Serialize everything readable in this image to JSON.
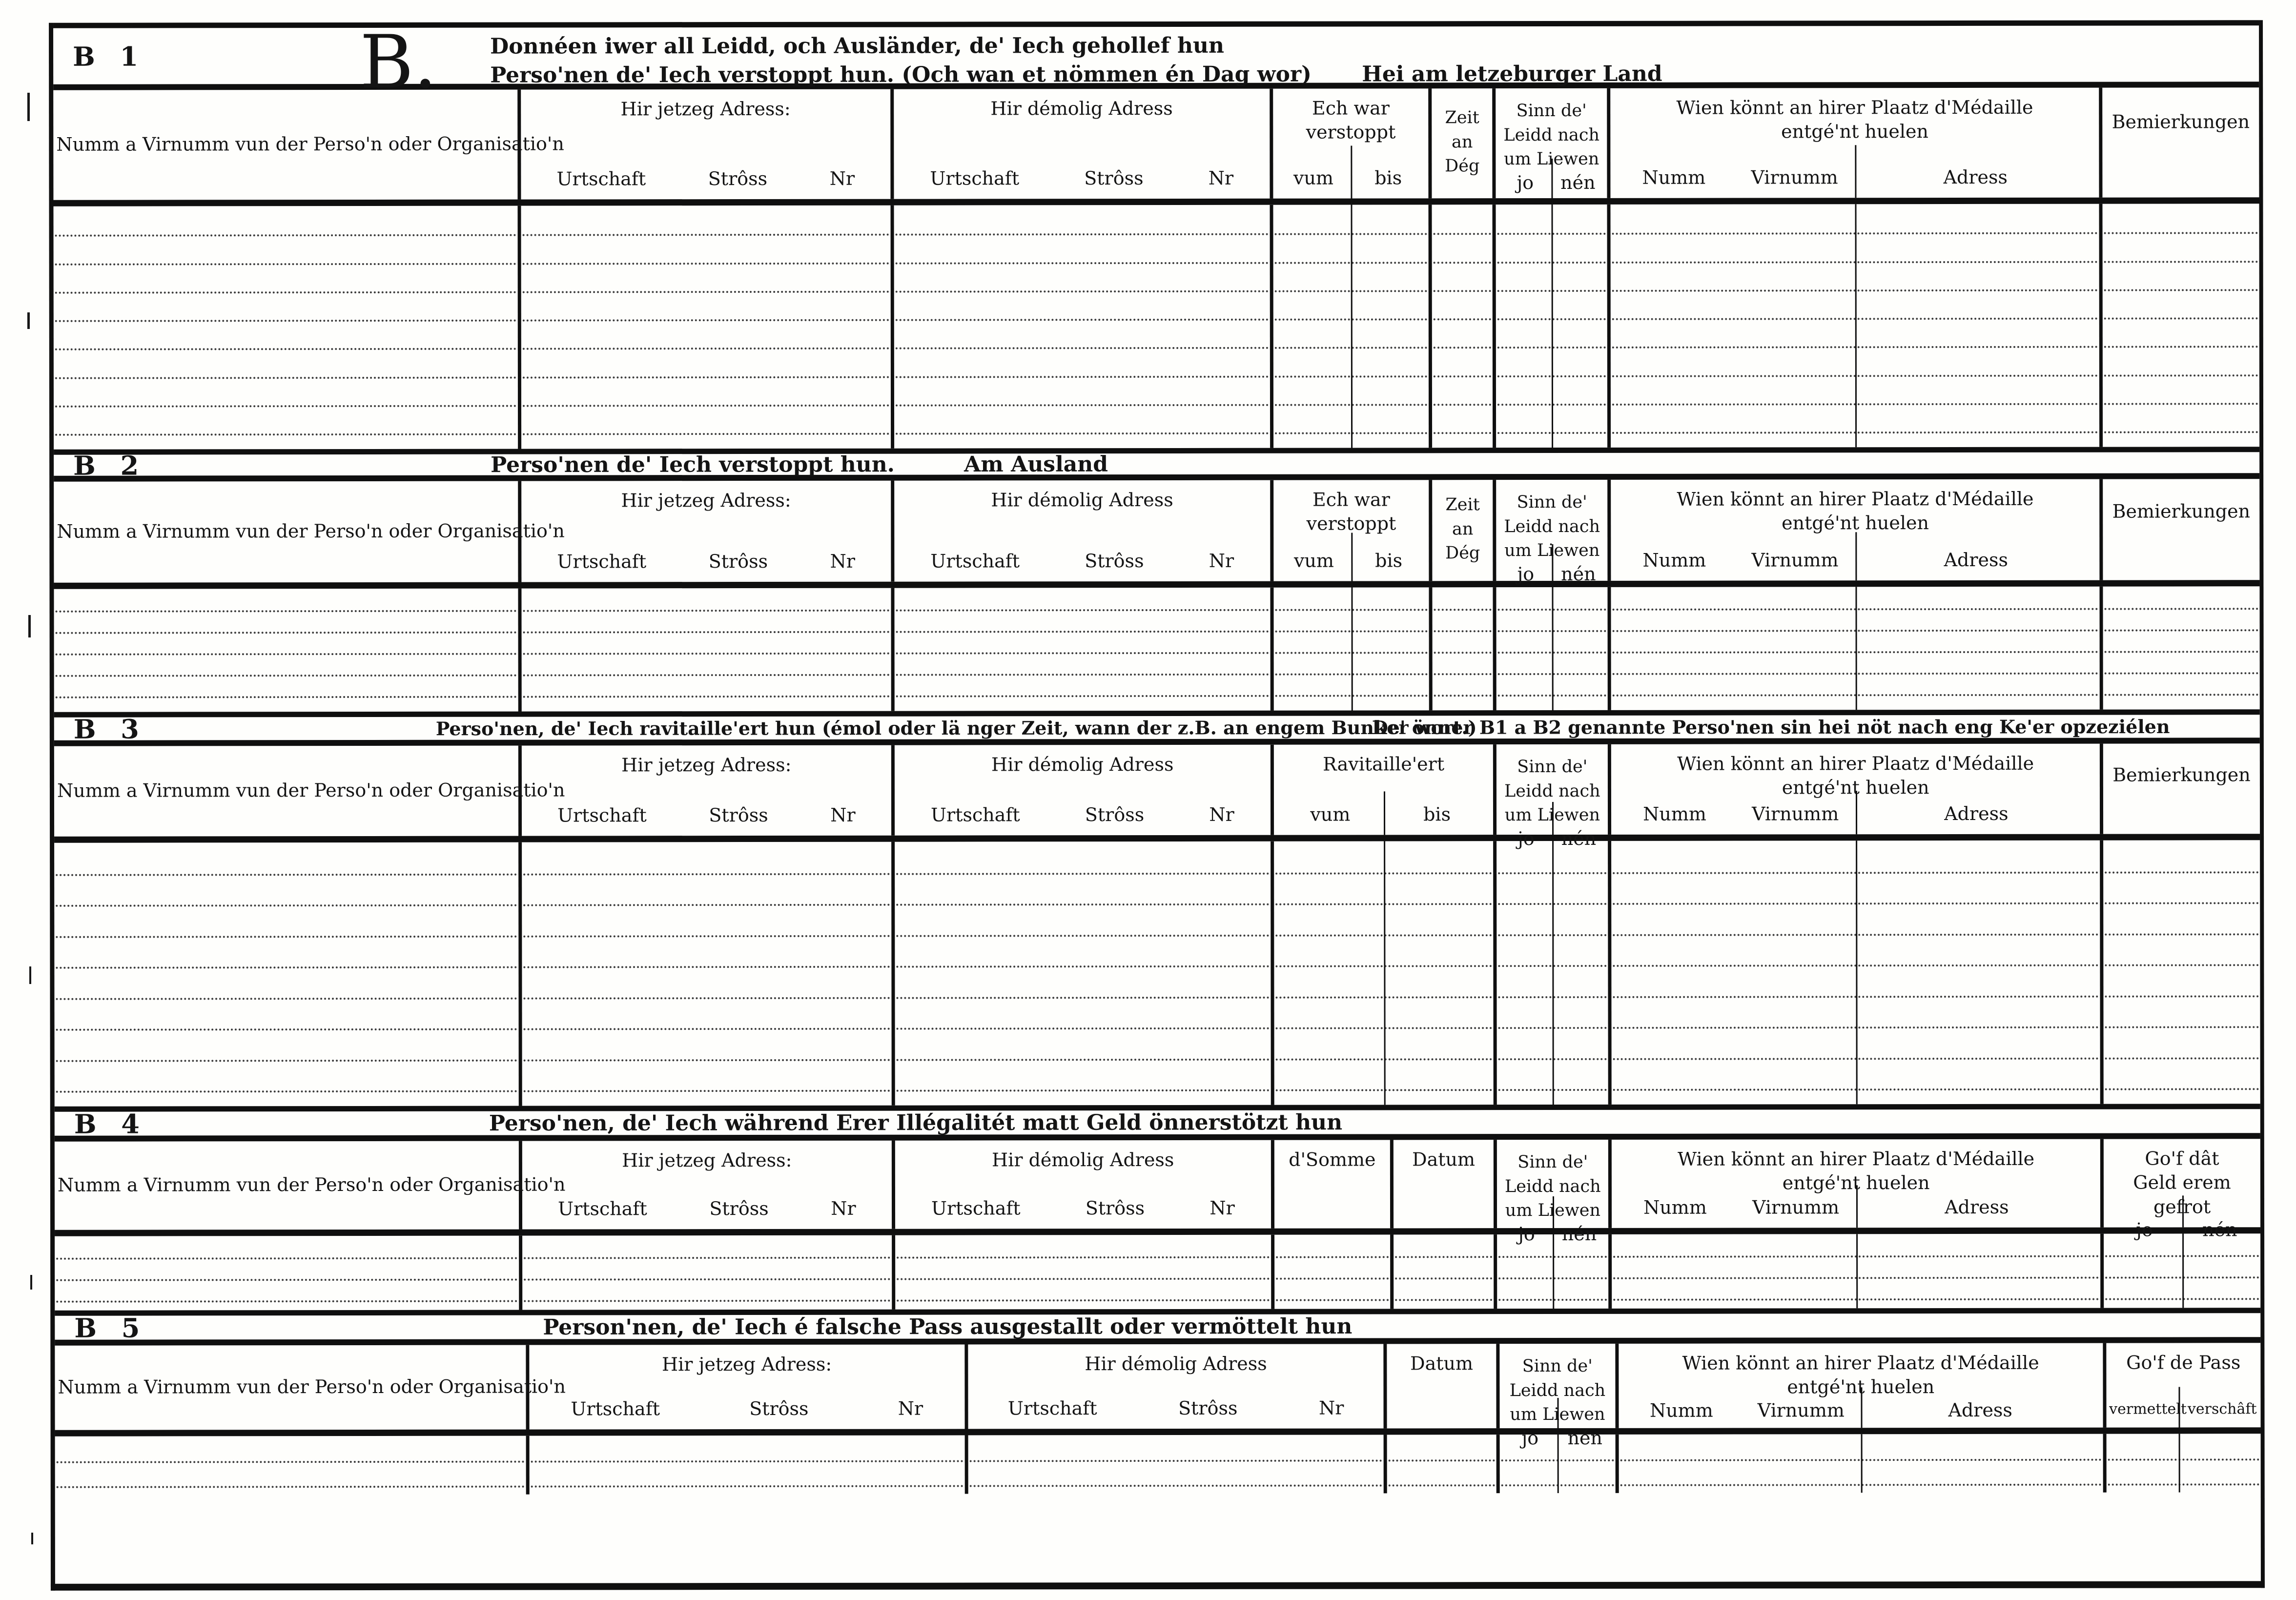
{
  "doc": {
    "big_letter": "B.",
    "ink": "#0f0f0f",
    "paper": "#fefefc",
    "sections": {
      "b1": {
        "id": "B 1",
        "title1": "Donnéen iwer all Leidd, och Ausländer, de' Iech gehollef hun",
        "title2": "Perso'nen de' Iech verstoppt hun. (Och wan et nömmen én Dag wor)",
        "title3": "Hei am letzeburger Land",
        "hidden_label": "Ech war verstoppt",
        "blank_rows": 8
      },
      "b2": {
        "id": "B 2",
        "title1": "Perso'nen de' Iech verstoppt hun.",
        "title2": "Am Ausland",
        "hidden_label": "Ech war verstoppt",
        "blank_rows": 5
      },
      "b3": {
        "id": "B 3",
        "title1": "Perso'nen, de' Iech ravitaille'ert hun (émol oder lä nger Zeit, wann der z.B. an engem Bunker wort.)",
        "title2": "De' önner B1 a B2 genannte Perso'nen sin hei nöt nach eng Ke'er opzeziélen",
        "ravitailleert": "Ravitaille'ert",
        "blank_rows": 8
      },
      "b4": {
        "id": "B 4",
        "title1": "Perso'nen, de' Iech während Erer Illégalitét matt Geld önnerstötzt hun",
        "somme": "d'Somme",
        "gof_line1": "Go'f dât",
        "gof_line2": "Geld erem gefrot",
        "blank_rows": 3
      },
      "b5": {
        "id": "B 5",
        "title1": "Person'nen, de' Iech é falsche Pass ausgestallt oder  vermöttelt hun",
        "gof_pass": "Go'f de Pass",
        "vermettelt": "vermettelt",
        "verschaft": "verschâft",
        "blank_rows": 2
      }
    },
    "labels": {
      "name_org": "Numm a Virnumm vun der Perso'n oder Organisatio'n",
      "addr_now": "Hir jetzeg Adress:",
      "addr_former": "Hir démolig Adress",
      "urtschaft": "Urtschaft",
      "stross": "Strôss",
      "nr": "Nr",
      "vum": "vum",
      "bis": "bis",
      "zeit": [
        "Zeit",
        "an",
        "Dég"
      ],
      "alive": [
        "Sinn de'",
        "Leidd nach",
        "um Liewen"
      ],
      "jo": "jo",
      "nen": "nén",
      "medal1": "Wien könnt an hirer Plaatz d'Médaille",
      "medal2": "entgé'nt huelen",
      "numm": "Numm",
      "virnumm": "Virnumm",
      "adress": "Adress",
      "bemierkungen": "Bemierkungen",
      "datum": "Datum"
    }
  }
}
